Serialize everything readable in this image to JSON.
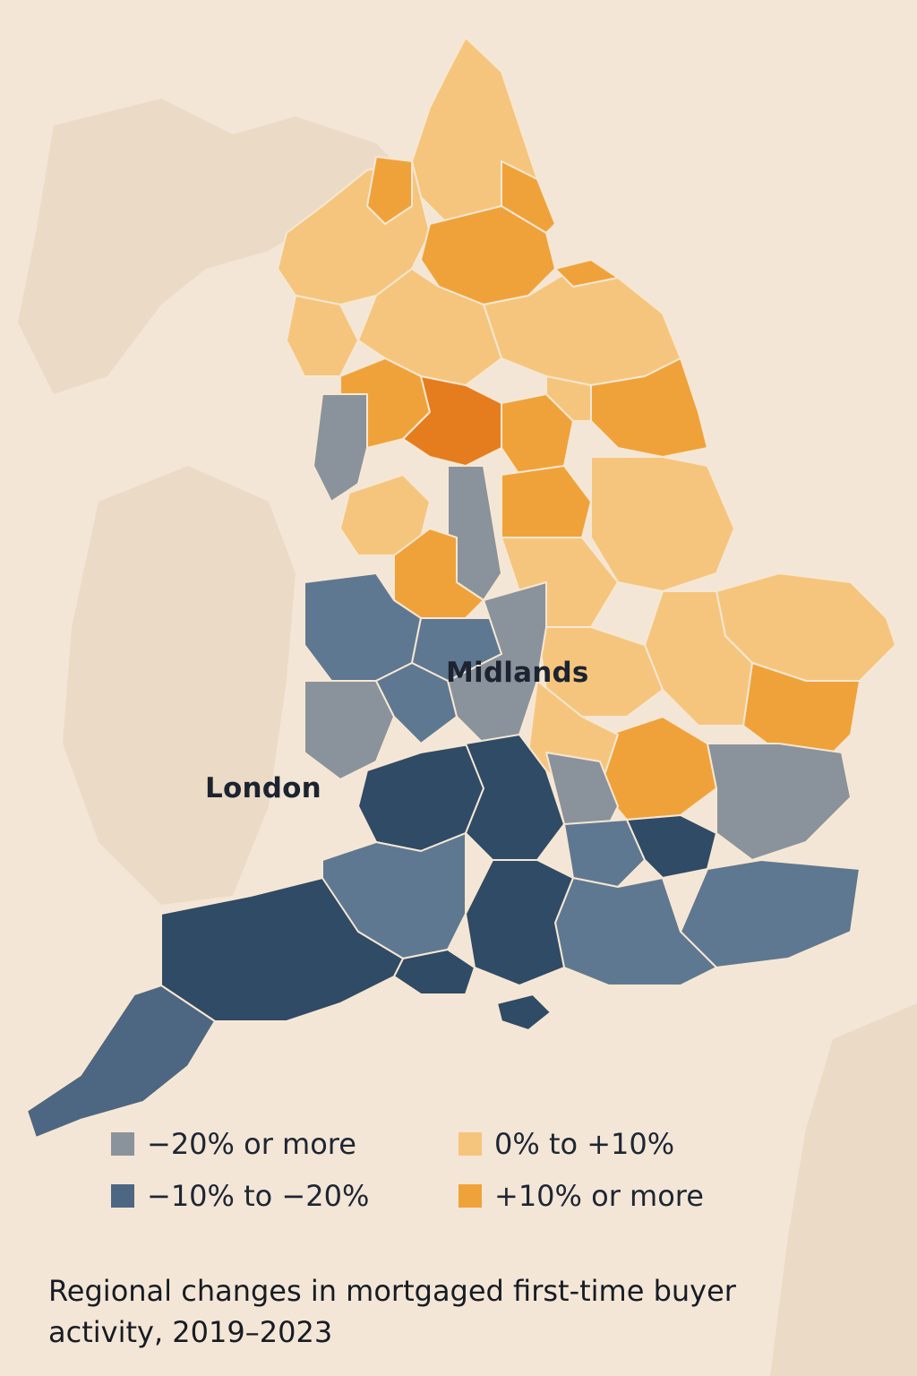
{
  "labels": {
    "midlands": "Midlands",
    "london": "London"
  },
  "legend": [
    {
      "label": "−20% or more",
      "color": "#8a939b"
    },
    {
      "label": "−10% to −20%",
      "color": "#4d6782"
    },
    {
      "label": "0% to +10%",
      "color": "#f6c57d"
    },
    {
      "label": "+10% or more",
      "color": "#f0a23a"
    }
  ],
  "caption": "Regional changes in mortgaged first-time buyer activity, 2019–2023",
  "colors": {
    "background": "#f3e6d6",
    "land_outline": "#e9d8c3",
    "light_orange": "#f6c57d",
    "mid_orange": "#f0a23a",
    "deep_orange": "#e57d1f",
    "grey": "#8a939b",
    "slate": "#5f7891",
    "dark_blue": "#2f4b66"
  }
}
